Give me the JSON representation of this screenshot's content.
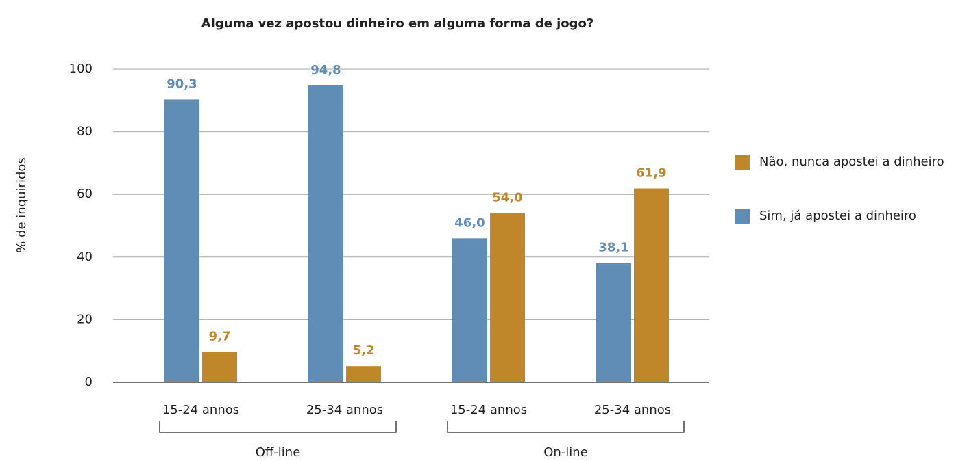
{
  "chart_data": {
    "type": "bar",
    "title": "Alguma vez apostou dinheiro em alguma forma de jogo?",
    "ylabel": "% de inquiridos",
    "categories": [
      "15-24 annos",
      "25-34 annos",
      "15-24 annos",
      "25-34 annos"
    ],
    "groups": [
      {
        "name": "Off-line",
        "span": 2
      },
      {
        "name": "On-line",
        "span": 2
      }
    ],
    "series": [
      {
        "name": "Sim, já apostei a dinheiro",
        "color": "#5f8db5",
        "values": [
          90.3,
          94.8,
          46.0,
          38.1
        ],
        "value_labels": [
          "90,3",
          "94,8",
          "46,0",
          "38,1"
        ]
      },
      {
        "name": "Não, nunca apostei a dinheiro",
        "color": "#c0862a",
        "values": [
          9.7,
          5.2,
          54.0,
          61.9
        ],
        "value_labels": [
          "9,7",
          "5,2",
          "54,0",
          "61,9"
        ]
      }
    ],
    "ylim": [
      0,
      100
    ],
    "yticks": [
      0,
      20,
      40,
      60,
      80,
      100
    ],
    "grid": true,
    "legend": "right"
  }
}
